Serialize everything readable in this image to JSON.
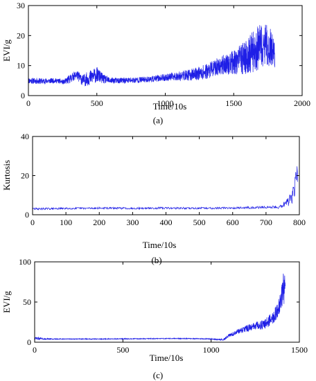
{
  "chart_data": [
    {
      "type": "line",
      "panel_label": "(a)",
      "xlabel": "Time/10s",
      "ylabel": "EVI/g",
      "xlim": [
        0,
        2000
      ],
      "ylim": [
        0,
        30
      ],
      "xticks": [
        "0",
        "500",
        "1000",
        "1500",
        "2000"
      ],
      "yticks": [
        "0",
        "10",
        "20",
        "30"
      ],
      "grid": false,
      "color": "#1f1fe6",
      "series": [
        {
          "x": [
            0,
            100,
            200,
            260,
            300,
            350,
            400,
            450,
            500,
            550,
            600,
            700,
            800,
            900,
            1000,
            1100,
            1200,
            1300,
            1400,
            1500,
            1550,
            1600,
            1650,
            1700,
            1750,
            1800
          ],
          "y": [
            5,
            4.8,
            5,
            4.5,
            5.5,
            7,
            5,
            6,
            7,
            5.5,
            5,
            5,
            5.2,
            5.5,
            6,
            6.5,
            7,
            8,
            10,
            11,
            12,
            13,
            15,
            16,
            17,
            14
          ],
          "noise": [
            1,
            1,
            0.8,
            0.8,
            1.5,
            1.5,
            2,
            2.5,
            2.5,
            1.5,
            1,
            1,
            1,
            1,
            1.2,
            1.5,
            2,
            2.5,
            3,
            4,
            5,
            6,
            7,
            8,
            7,
            5
          ]
        }
      ]
    },
    {
      "type": "line",
      "panel_label": "(b)",
      "xlabel": "Time/10s",
      "ylabel": "Kurtosis",
      "xlim": [
        0,
        800
      ],
      "ylim": [
        0,
        40
      ],
      "xticks": [
        "0",
        "100",
        "200",
        "300",
        "400",
        "500",
        "600",
        "700",
        "800"
      ],
      "yticks": [
        "0",
        "20",
        "40"
      ],
      "grid": false,
      "color": "#1f1fe6",
      "series": [
        {
          "x": [
            0,
            100,
            200,
            300,
            400,
            500,
            600,
            700,
            740,
            760,
            775,
            785,
            790,
            795
          ],
          "y": [
            3,
            3.2,
            3.4,
            3.3,
            3.4,
            3.3,
            3.5,
            3.8,
            4,
            6,
            8,
            12,
            25,
            15
          ],
          "noise": [
            0.5,
            0.5,
            0.5,
            0.5,
            0.5,
            0.5,
            0.5,
            0.6,
            1,
            2,
            3,
            5,
            9,
            6
          ]
        }
      ]
    },
    {
      "type": "line",
      "panel_label": "(c)",
      "xlabel": "Time/10s",
      "ylabel": "EVI/g",
      "xlim": [
        0,
        1500
      ],
      "ylim": [
        0,
        100
      ],
      "xticks": [
        "0",
        "500",
        "1000",
        "1500"
      ],
      "yticks": [
        "0",
        "50",
        "100"
      ],
      "grid": false,
      "color": "#1f1fe6",
      "series": [
        {
          "x": [
            0,
            50,
            100,
            200,
            300,
            400,
            500,
            600,
            700,
            800,
            900,
            1000,
            1070,
            1100,
            1150,
            1200,
            1250,
            1300,
            1350,
            1380,
            1400,
            1410,
            1420
          ],
          "y": [
            5,
            4,
            4,
            4,
            4,
            4,
            4.2,
            4.3,
            4.5,
            4.6,
            4.5,
            4,
            3,
            8,
            13,
            17,
            20,
            22,
            30,
            40,
            55,
            70,
            60
          ],
          "noise": [
            2,
            1,
            0.6,
            0.5,
            0.5,
            0.5,
            0.5,
            0.5,
            0.5,
            0.5,
            0.5,
            0.6,
            1,
            2,
            3,
            4,
            5,
            6,
            8,
            10,
            15,
            20,
            20
          ]
        }
      ]
    }
  ]
}
